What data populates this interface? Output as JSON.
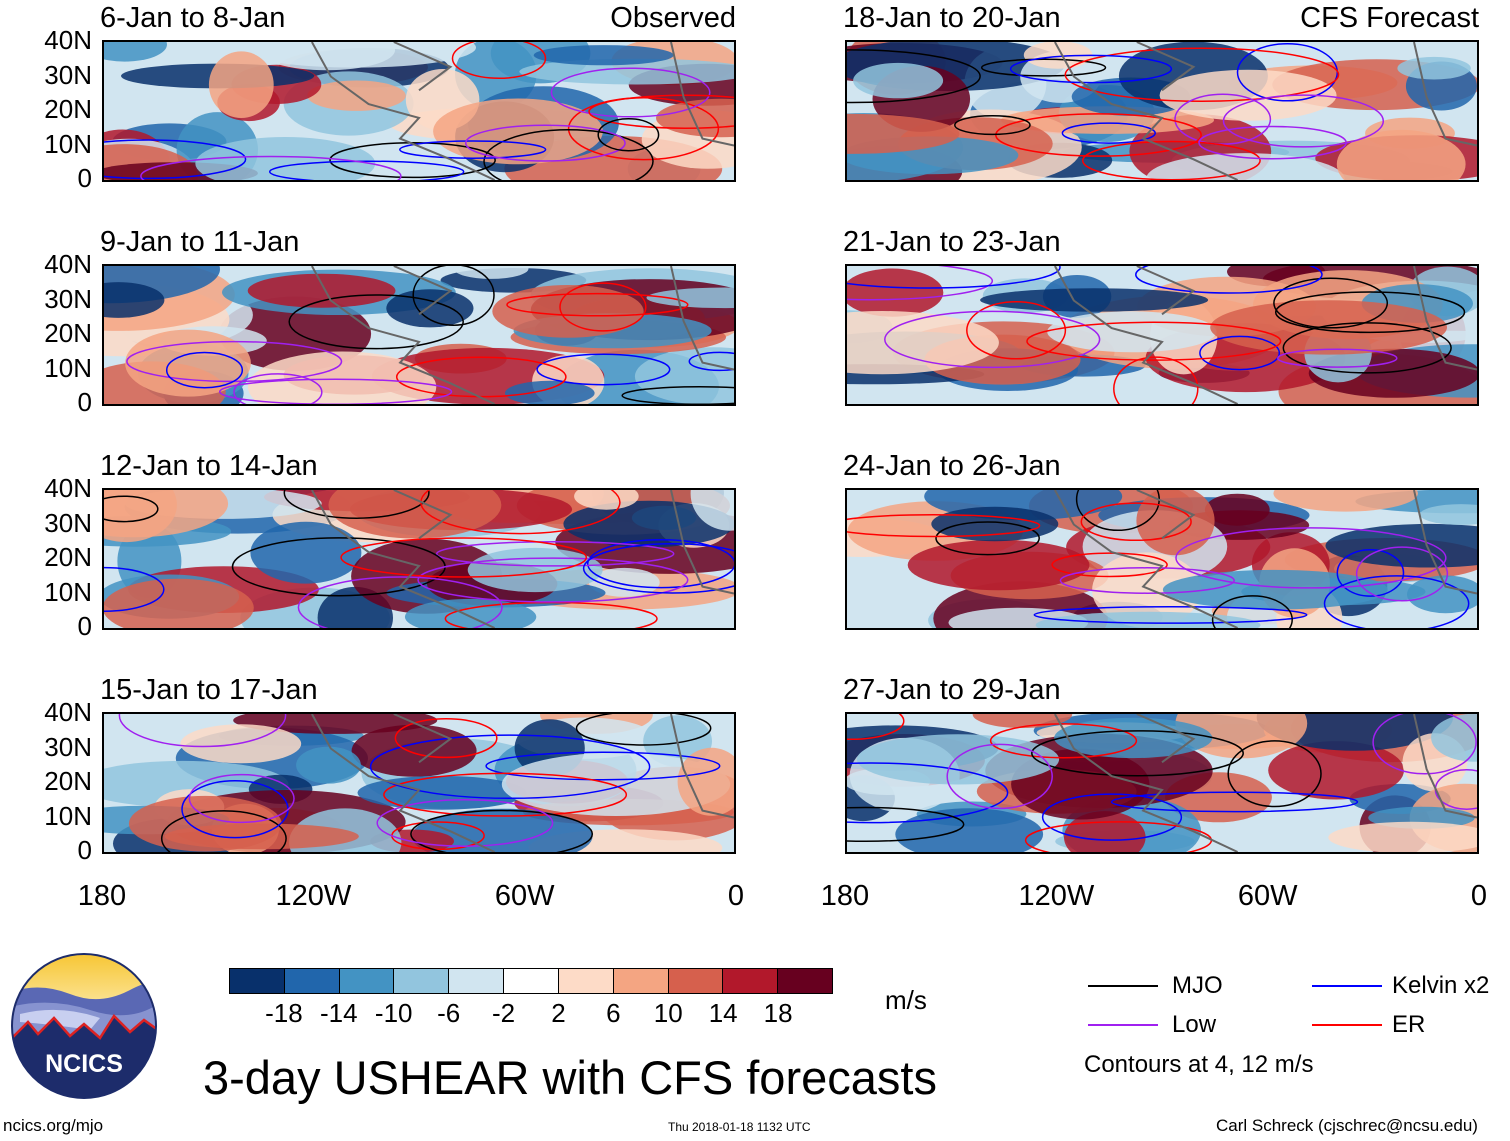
{
  "panels": [
    {
      "title": "6-Jan to 8-Jan",
      "tag": "Observed",
      "column": "left",
      "row": 0
    },
    {
      "title": "9-Jan to 11-Jan",
      "tag": "",
      "column": "left",
      "row": 1
    },
    {
      "title": "12-Jan to 14-Jan",
      "tag": "",
      "column": "left",
      "row": 2
    },
    {
      "title": "15-Jan to 17-Jan",
      "tag": "",
      "column": "left",
      "row": 3
    },
    {
      "title": "18-Jan to 20-Jan",
      "tag": "CFS Forecast",
      "column": "right",
      "row": 0
    },
    {
      "title": "21-Jan to 23-Jan",
      "tag": "",
      "column": "right",
      "row": 1
    },
    {
      "title": "24-Jan to 26-Jan",
      "tag": "",
      "column": "right",
      "row": 2
    },
    {
      "title": "27-Jan to 29-Jan",
      "tag": "",
      "column": "right",
      "row": 3
    }
  ],
  "axes": {
    "lat_labels": [
      "40N",
      "30N",
      "20N",
      "10N",
      "0"
    ],
    "lon_labels": [
      "180",
      "120W",
      "60W",
      "0"
    ]
  },
  "colorbar": {
    "labels": [
      "-18",
      "-14",
      "-10",
      "-6",
      "-2",
      "2",
      "6",
      "10",
      "14",
      "18"
    ],
    "colors": [
      "#08306b",
      "#2166ac",
      "#4393c3",
      "#92c5de",
      "#d1e5f0",
      "#ffffff",
      "#fddbc7",
      "#f4a582",
      "#d6604d",
      "#b2182b",
      "#67001f"
    ],
    "units": "m/s"
  },
  "legend": {
    "items": [
      {
        "label": "MJO",
        "color": "#000000"
      },
      {
        "label": "Kelvin x2",
        "color": "#0000ff"
      },
      {
        "label": "Low",
        "color": "#a020f0"
      },
      {
        "label": "ER",
        "color": "#ff0000"
      }
    ],
    "note": "Contours at 4, 12 m/s"
  },
  "title": "3-day USHEAR with CFS forecasts",
  "logo_text": "NCICS",
  "footer": {
    "left": "ncics.org/mjo",
    "center": "Thu 2018-01-18 1132 UTC",
    "right": "Carl Schreck (cjschrec@ncsu.edu)"
  }
}
